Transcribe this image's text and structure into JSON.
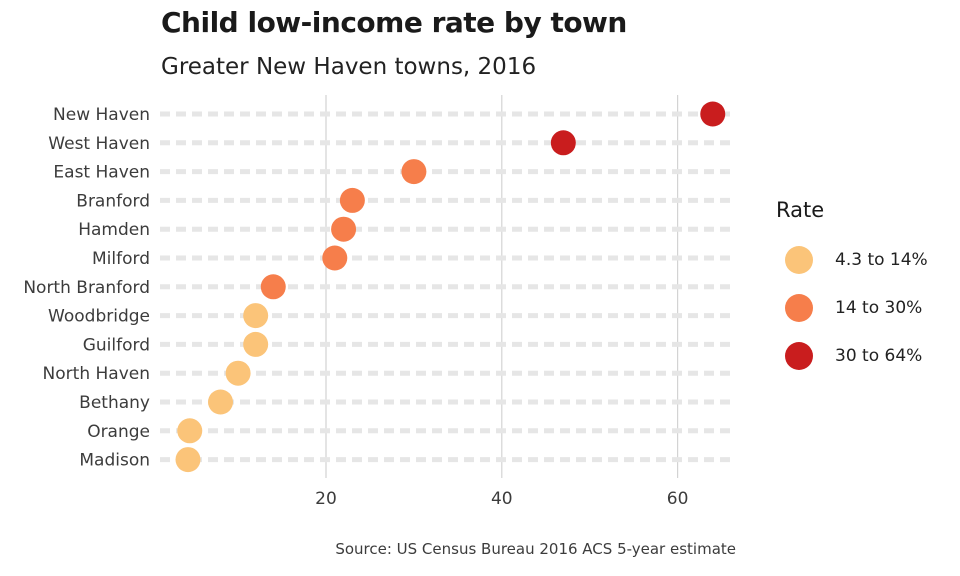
{
  "chart_data": {
    "type": "scatter",
    "title": "Child low-income rate by town",
    "subtitle": "Greater New Haven towns, 2016",
    "caption": "Source: US Census Bureau 2016 ACS 5-year estimate",
    "xlabel": "",
    "ylabel": "",
    "xlim": [
      0,
      68
    ],
    "x_ticks": [
      20,
      40,
      60
    ],
    "grid": "vertical major lines; dashed horizontal lines per town",
    "legend": {
      "title": "Rate",
      "position": "right",
      "entries": [
        {
          "label": "4.3 to 14%",
          "color": "#fbc479"
        },
        {
          "label": "14 to 30%",
          "color": "#f67e4b"
        },
        {
          "label": "30 to 64%",
          "color": "#c91d1e"
        }
      ]
    },
    "points": [
      {
        "town": "New Haven",
        "rate": 64,
        "group": 2
      },
      {
        "town": "West Haven",
        "rate": 47,
        "group": 2
      },
      {
        "town": "East Haven",
        "rate": 30,
        "group": 1
      },
      {
        "town": "Branford",
        "rate": 23,
        "group": 1
      },
      {
        "town": "Hamden",
        "rate": 22,
        "group": 1
      },
      {
        "town": "Milford",
        "rate": 21,
        "group": 1
      },
      {
        "town": "North Branford",
        "rate": 14,
        "group": 1
      },
      {
        "town": "Woodbridge",
        "rate": 12,
        "group": 0
      },
      {
        "town": "Guilford",
        "rate": 12,
        "group": 0
      },
      {
        "town": "North Haven",
        "rate": 10,
        "group": 0
      },
      {
        "town": "Bethany",
        "rate": 8,
        "group": 0
      },
      {
        "town": "Orange",
        "rate": 4.5,
        "group": 0
      },
      {
        "town": "Madison",
        "rate": 4.3,
        "group": 0
      }
    ]
  }
}
